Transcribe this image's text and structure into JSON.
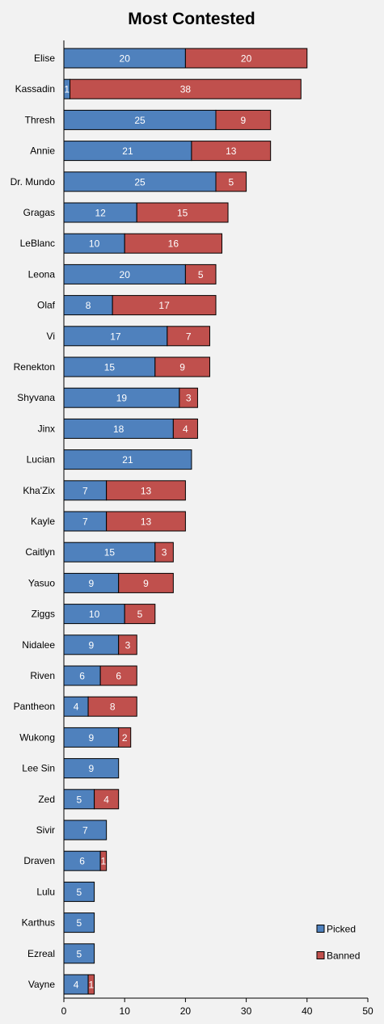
{
  "chart_data": {
    "type": "bar",
    "orientation": "horizontal",
    "stacked": true,
    "title": "Most Contested",
    "categories": [
      "Elise",
      "Kassadin",
      "Thresh",
      "Annie",
      "Dr. Mundo",
      "Gragas",
      "LeBlanc",
      "Leona",
      "Olaf",
      "Vi",
      "Renekton",
      "Shyvana",
      "Jinx",
      "Lucian",
      "Kha'Zix",
      "Kayle",
      "Caitlyn",
      "Yasuo",
      "Ziggs",
      "Nidalee",
      "Riven",
      "Pantheon",
      "Wukong",
      "Lee Sin",
      "Zed",
      "Sivir",
      "Draven",
      "Lulu",
      "Karthus",
      "Ezreal",
      "Vayne"
    ],
    "series": [
      {
        "name": "Picked",
        "color": "#4f81bd",
        "values": [
          20,
          1,
          25,
          21,
          25,
          12,
          10,
          20,
          8,
          17,
          15,
          19,
          18,
          21,
          7,
          7,
          15,
          9,
          10,
          9,
          6,
          4,
          9,
          9,
          5,
          7,
          6,
          5,
          5,
          5,
          4
        ]
      },
      {
        "name": "Banned",
        "color": "#c0504d",
        "values": [
          20,
          38,
          9,
          13,
          5,
          15,
          16,
          5,
          17,
          7,
          9,
          3,
          4,
          0,
          13,
          13,
          3,
          9,
          5,
          3,
          6,
          8,
          2,
          0,
          4,
          0,
          1,
          0,
          0,
          0,
          1
        ]
      }
    ],
    "xlim": [
      0,
      50
    ],
    "xticks": [
      "0",
      "10",
      "20",
      "30",
      "40",
      "50"
    ],
    "grid": false,
    "legend": "bottom-right"
  }
}
